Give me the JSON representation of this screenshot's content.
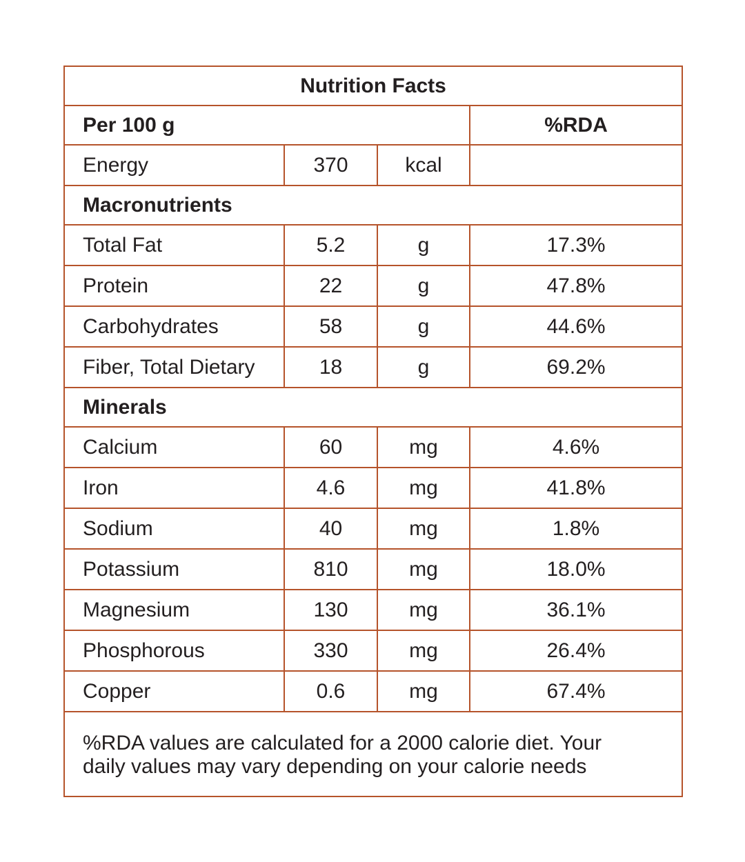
{
  "title": "Nutrition Facts",
  "header": {
    "basis": "Per 100 g",
    "rda": "%RDA"
  },
  "energy": {
    "name": "Energy",
    "amount": "370",
    "unit": "kcal"
  },
  "sections": [
    {
      "title": "Macronutrients",
      "rows": [
        [
          "Total Fat",
          "5.2",
          "g",
          "17.3%"
        ],
        [
          "Protein",
          "22",
          "g",
          "47.8%"
        ],
        [
          "Carbohydrates",
          "58",
          "g",
          "44.6%"
        ],
        [
          "Fiber, Total Dietary",
          "18",
          "g",
          "69.2%"
        ]
      ]
    },
    {
      "title": "Minerals",
      "rows": [
        [
          "Calcium",
          "60",
          "mg",
          "4.6%"
        ],
        [
          "Iron",
          "4.6",
          "mg",
          "41.8%"
        ],
        [
          "Sodium",
          "40",
          "mg",
          "1.8%"
        ],
        [
          "Potassium",
          "810",
          "mg",
          "18.0%"
        ],
        [
          "Magnesium",
          "130",
          "mg",
          "36.1%"
        ],
        [
          "Phosphorous",
          "330",
          "mg",
          "26.4%"
        ],
        [
          "Copper",
          "0.6",
          "mg",
          "67.4%"
        ]
      ]
    }
  ],
  "footnote": [
    "%RDA values are calculated for a 2000 calorie diet. Your",
    "daily values may vary depending on your calorie needs"
  ]
}
